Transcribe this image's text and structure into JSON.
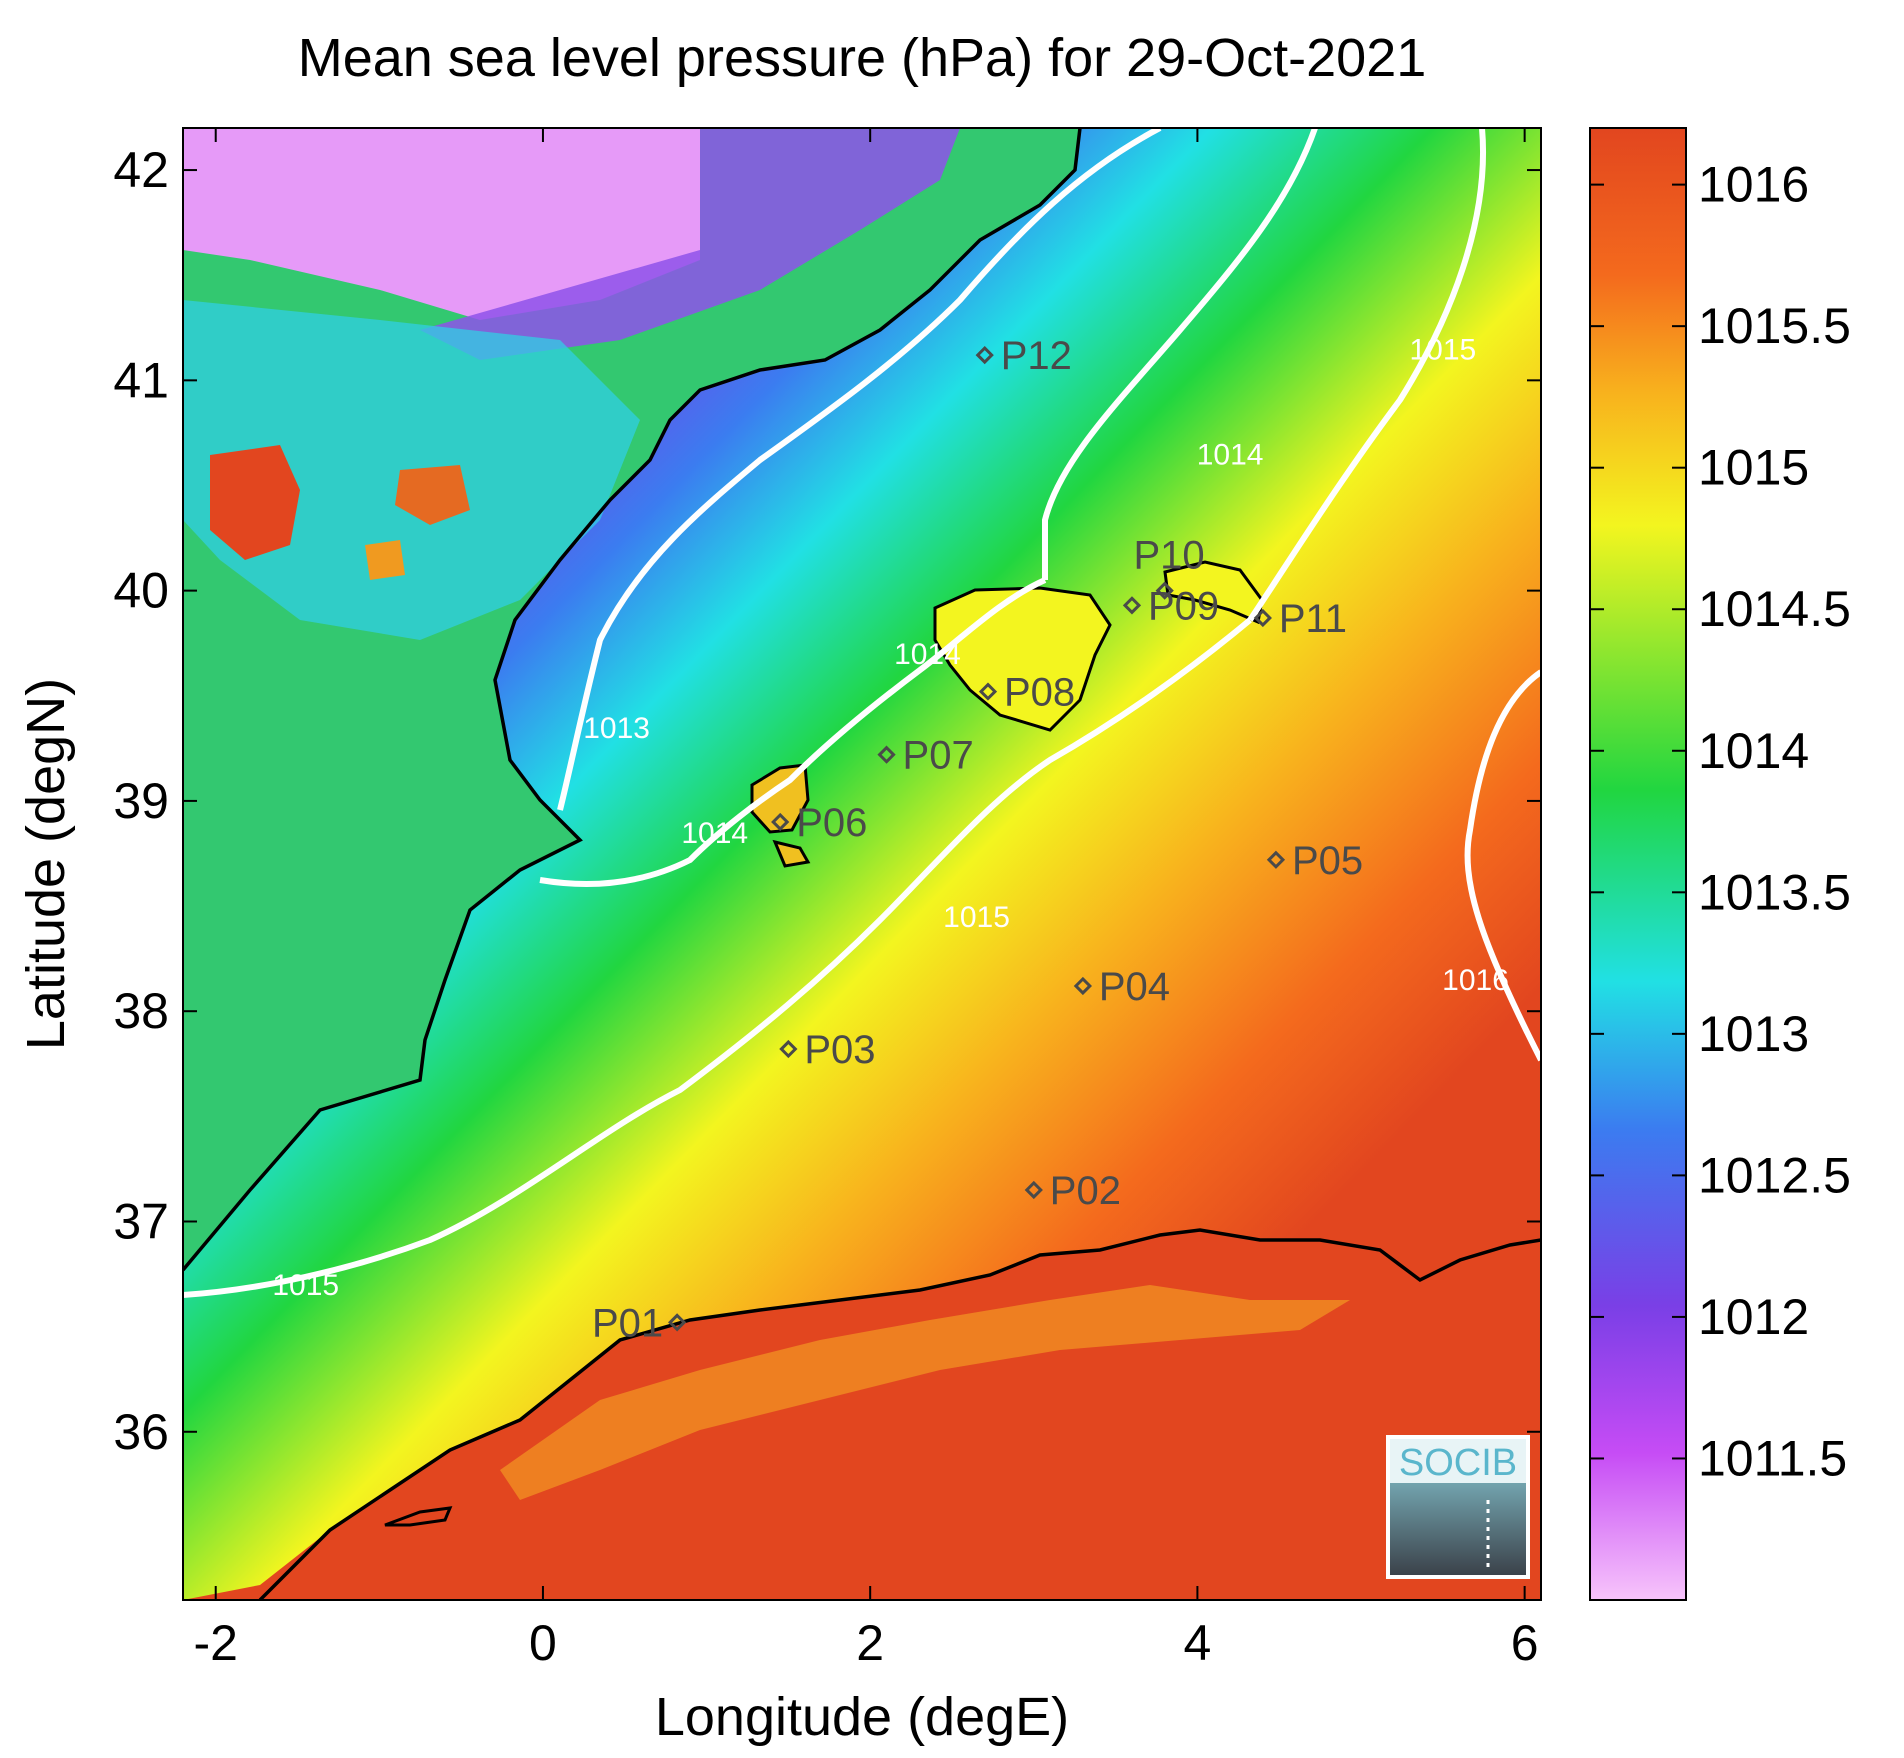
{
  "chart_data": {
    "type": "heatmap",
    "title": "Mean sea level pressure (hPa) for 29-Oct-2021",
    "xlabel": "Longitude (degE)",
    "ylabel": "Latitude (degN)",
    "xlim": [
      -2.2,
      6.1
    ],
    "ylim": [
      35.2,
      42.2
    ],
    "x_ticks": [
      -2,
      0,
      2,
      4,
      6
    ],
    "y_ticks": [
      36,
      37,
      38,
      39,
      40,
      41,
      42
    ],
    "colorbar": {
      "min": 1011.0,
      "max": 1016.2,
      "ticks": [
        1011.5,
        1012,
        1012.5,
        1013,
        1013.5,
        1014,
        1014.5,
        1015,
        1015.5,
        1016
      ],
      "colors": [
        "#f7c4fb",
        "#c64cf5",
        "#7a3fe6",
        "#3b7cf0",
        "#21e0e4",
        "#21d640",
        "#f3f51f",
        "#f8b21d",
        "#f46a1d",
        "#e2461f"
      ]
    },
    "contour_labels": [
      {
        "text": "1013",
        "lon": 0.45,
        "lat": 39.3
      },
      {
        "text": "1014",
        "lon": 2.35,
        "lat": 39.65
      },
      {
        "text": "1014",
        "lon": 1.05,
        "lat": 38.8
      },
      {
        "text": "1014",
        "lon": 4.2,
        "lat": 40.6
      },
      {
        "text": "1015",
        "lon": 2.65,
        "lat": 38.4
      },
      {
        "text": "1015",
        "lon": 5.5,
        "lat": 41.1
      },
      {
        "text": "1015",
        "lon": -1.45,
        "lat": 36.65
      },
      {
        "text": "1016",
        "lon": 5.7,
        "lat": 38.1
      }
    ],
    "points": [
      {
        "label": "P01",
        "lon": 0.82,
        "lat": 36.52
      },
      {
        "label": "P02",
        "lon": 3.0,
        "lat": 37.15
      },
      {
        "label": "P03",
        "lon": 1.5,
        "lat": 37.82
      },
      {
        "label": "P04",
        "lon": 3.3,
        "lat": 38.12
      },
      {
        "label": "P05",
        "lon": 4.48,
        "lat": 38.72
      },
      {
        "label": "P06",
        "lon": 1.45,
        "lat": 38.9
      },
      {
        "label": "P07",
        "lon": 2.1,
        "lat": 39.22
      },
      {
        "label": "P08",
        "lon": 2.72,
        "lat": 39.52
      },
      {
        "label": "P09",
        "lon": 3.6,
        "lat": 39.93
      },
      {
        "label": "P10",
        "lon": 3.8,
        "lat": 40.0
      },
      {
        "label": "P11",
        "lon": 4.4,
        "lat": 39.87
      },
      {
        "label": "P12",
        "lon": 2.7,
        "lat": 41.12
      }
    ]
  },
  "logo": {
    "text": "SOCIB"
  }
}
